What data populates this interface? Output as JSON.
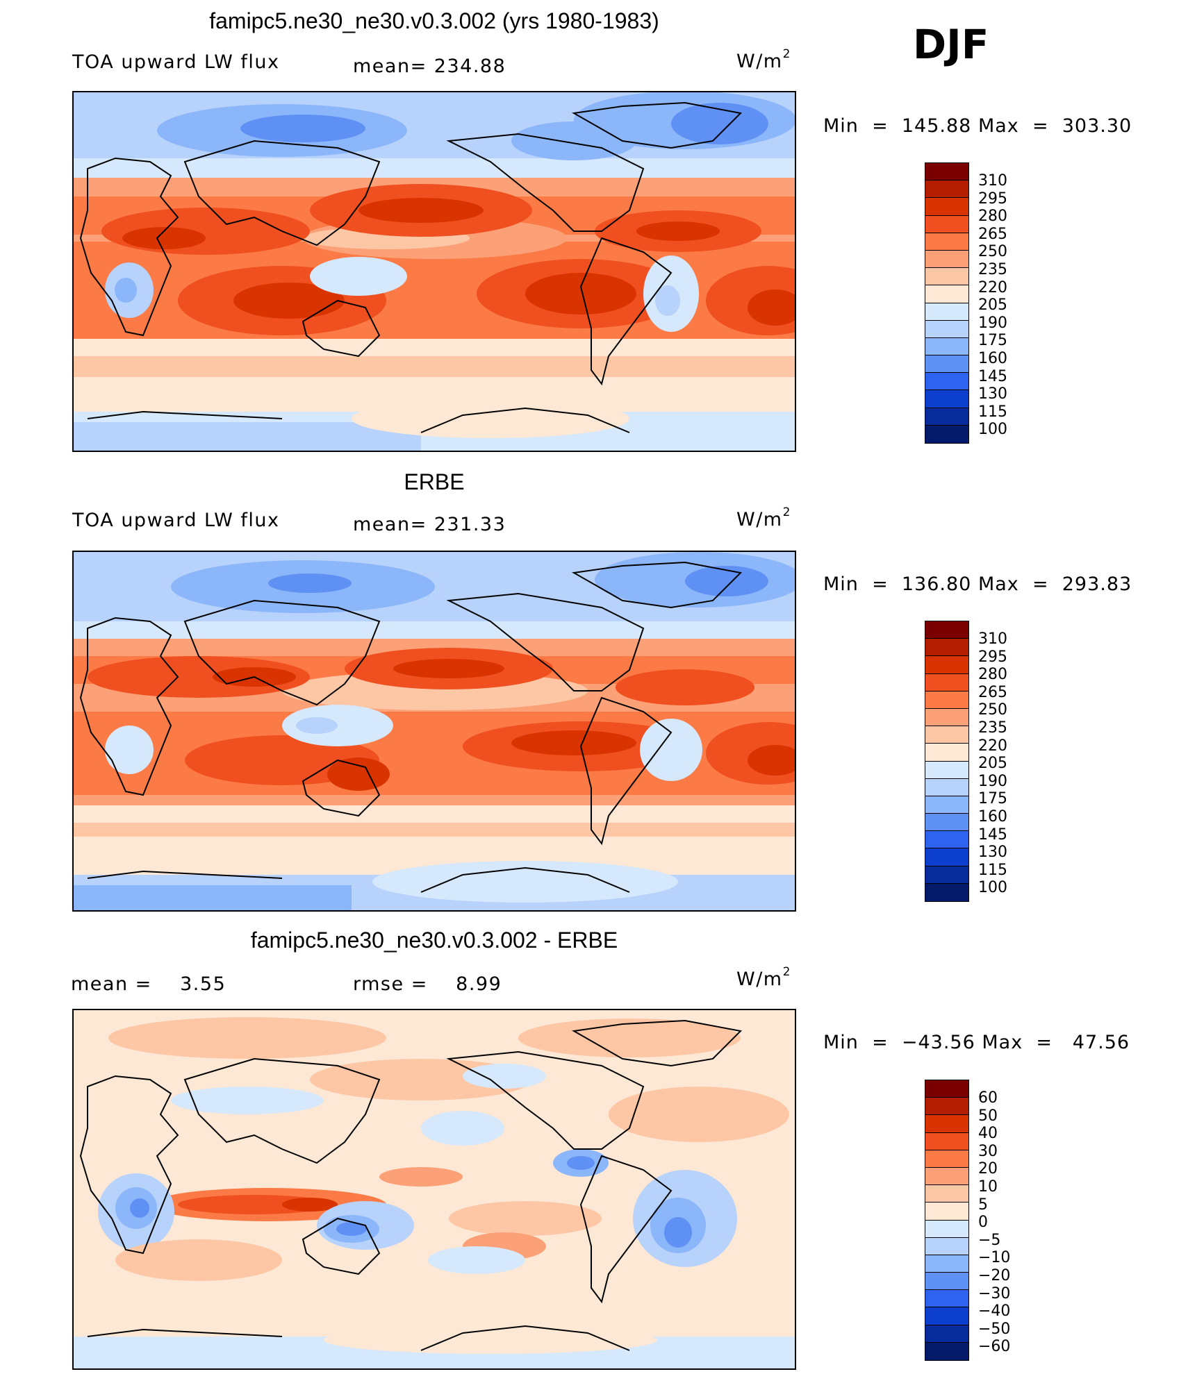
{
  "season": "DJF",
  "panels": [
    {
      "id": "model",
      "title": "famipc5.ne30_ne30.v0.3.002 (yrs 1980-1983)",
      "left_label": "TOA upward LW flux",
      "mean_label": "mean=",
      "mean_value": "234.88",
      "units": "W/m",
      "units_sup": "2",
      "min_label": "Min",
      "min_value": "145.88",
      "max_label": "Max",
      "max_value": "303.30",
      "colorbar_levels": [
        "310",
        "295",
        "280",
        "265",
        "250",
        "235",
        "220",
        "205",
        "190",
        "175",
        "160",
        "145",
        "130",
        "115",
        "100"
      ],
      "colorbar_colors": [
        "#7a0000",
        "#b51d00",
        "#d93400",
        "#f05020",
        "#fb7a45",
        "#fca077",
        "#fdc7a6",
        "#fde8d6",
        "#d6e8fb",
        "#b7d2fb",
        "#8cb6fa",
        "#5f90f3",
        "#2d63ef",
        "#0d3fcf",
        "#072b9a",
        "#041a6b"
      ]
    },
    {
      "id": "obs",
      "title": "ERBE",
      "left_label": "TOA upward LW flux",
      "mean_label": "mean=",
      "mean_value": "231.33",
      "units": "W/m",
      "units_sup": "2",
      "min_label": "Min",
      "min_value": "136.80",
      "max_label": "Max",
      "max_value": "293.83",
      "colorbar_levels": [
        "310",
        "295",
        "280",
        "265",
        "250",
        "235",
        "220",
        "205",
        "190",
        "175",
        "160",
        "145",
        "130",
        "115",
        "100"
      ],
      "colorbar_colors": [
        "#7a0000",
        "#b51d00",
        "#d93400",
        "#f05020",
        "#fb7a45",
        "#fca077",
        "#fdc7a6",
        "#fde8d6",
        "#d6e8fb",
        "#b7d2fb",
        "#8cb6fa",
        "#5f90f3",
        "#2d63ef",
        "#0d3fcf",
        "#072b9a",
        "#041a6b"
      ]
    },
    {
      "id": "diff",
      "title": "famipc5.ne30_ne30.v0.3.002 - ERBE",
      "mean_label": "mean =",
      "mean_value": "3.55",
      "rmse_label": "rmse =",
      "rmse_value": "8.99",
      "units": "W/m",
      "units_sup": "2",
      "min_label": "Min",
      "min_value": "−43.56",
      "max_label": "Max",
      "max_value": "47.56",
      "colorbar_levels": [
        "60",
        "50",
        "40",
        "30",
        "20",
        "10",
        "5",
        "0",
        "−5",
        "−10",
        "−20",
        "−30",
        "−40",
        "−50",
        "−60"
      ],
      "colorbar_colors": [
        "#7a0000",
        "#b51d00",
        "#d93400",
        "#f05020",
        "#fb7a45",
        "#fca077",
        "#fdc7a6",
        "#fde8d6",
        "#d6e8fb",
        "#b7d2fb",
        "#8cb6fa",
        "#5f90f3",
        "#2d63ef",
        "#0d3fcf",
        "#072b9a",
        "#041a6b"
      ]
    }
  ]
}
